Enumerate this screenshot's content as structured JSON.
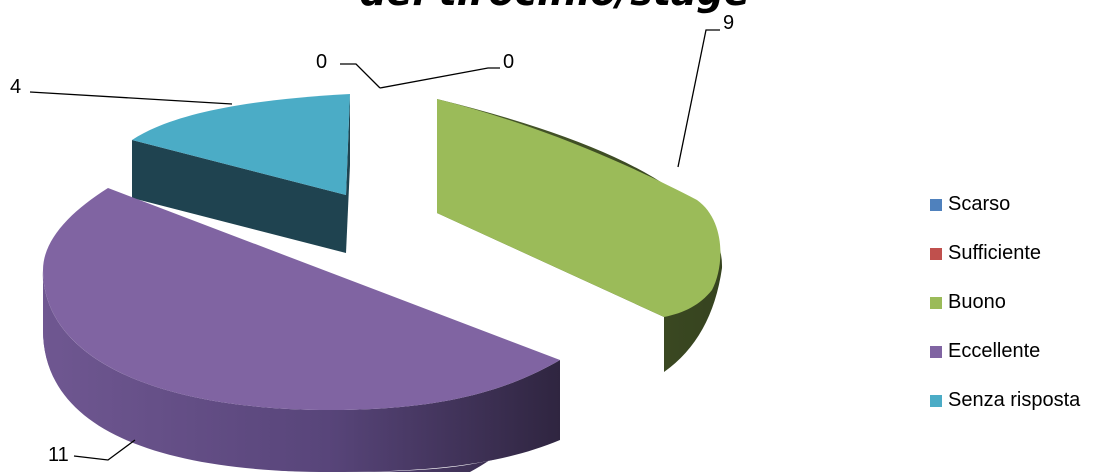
{
  "chart_data": {
    "type": "pie",
    "title": "del tirocinio/stage",
    "categories": [
      "Scarso",
      "Sufficiente",
      "Buono",
      "Eccellente",
      "Senza risposta"
    ],
    "values": [
      0,
      0,
      9,
      11,
      4
    ],
    "legend_position": "right",
    "colors": {
      "Scarso": "#4F81BD",
      "Sufficiente": "#C0504D",
      "Buono": "#9BBB59",
      "Eccellente": "#8064A2",
      "Senza risposta": "#4BACC6"
    },
    "side_colors": {
      "Buono": "#3D4B24",
      "Eccellente": "#5C4677",
      "Senza risposta": "#1F4350"
    }
  }
}
